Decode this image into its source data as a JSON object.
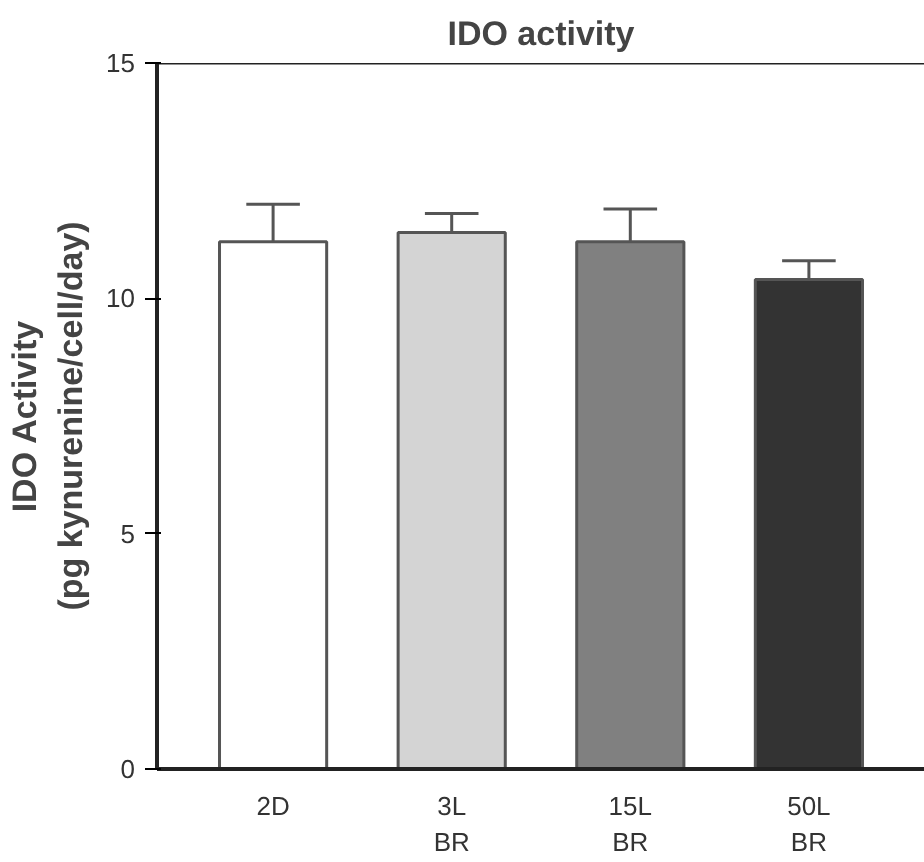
{
  "chart_data": {
    "type": "bar",
    "title": "IDO activity",
    "ylabel": "IDO Activity\n(pg kynurenine/cell/day)",
    "categories": [
      "2D",
      "3L\nBR",
      "15L\nBR",
      "50L\nBR"
    ],
    "values": [
      11.2,
      11.4,
      11.2,
      10.4
    ],
    "colors": [
      "#ffffff",
      "#d4d4d4",
      "#808080",
      "#333333"
    ],
    "errors": [
      [
        11.2,
        12.0
      ],
      [
        11.4,
        11.8
      ],
      [
        11.2,
        11.9
      ],
      [
        10.4,
        10.8
      ]
    ],
    "ylim": [
      0,
      15
    ],
    "yticks": [
      0,
      5,
      10,
      15
    ],
    "grid": false
  }
}
